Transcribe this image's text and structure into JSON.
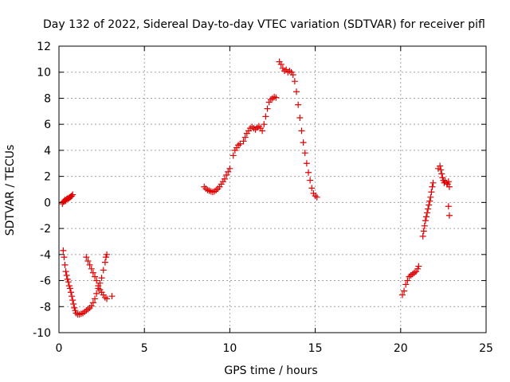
{
  "chart_data": {
    "type": "scatter",
    "title": "Day 132 of 2022, Sidereal Day-to-day VTEC variation (SDTVAR) for receiver pifl",
    "xlabel": "GPS time / hours",
    "ylabel": "SDTVAR / TECUs",
    "xlim": [
      0,
      25
    ],
    "ylim": [
      -10,
      12
    ],
    "xticks": [
      0,
      5,
      10,
      15,
      20,
      25
    ],
    "yticks": [
      -10,
      -8,
      -6,
      -4,
      -2,
      0,
      2,
      4,
      6,
      8,
      10,
      12
    ],
    "grid": true,
    "marker_color": "#e00000",
    "marker": "plus",
    "series": [
      {
        "points": [
          [
            0.2,
            -0.1
          ],
          [
            0.25,
            0.05
          ],
          [
            0.3,
            0.1
          ],
          [
            0.35,
            0.2
          ],
          [
            0.4,
            0.15
          ],
          [
            0.45,
            0.25
          ],
          [
            0.5,
            0.3
          ],
          [
            0.55,
            0.3
          ],
          [
            0.6,
            0.35
          ],
          [
            0.65,
            0.4
          ],
          [
            0.7,
            0.45
          ],
          [
            0.75,
            0.5
          ],
          [
            0.8,
            0.6
          ],
          [
            0.25,
            -3.7
          ],
          [
            0.3,
            -4.2
          ],
          [
            0.35,
            -4.8
          ],
          [
            0.4,
            -5.3
          ],
          [
            0.45,
            -5.6
          ],
          [
            0.5,
            -5.9
          ],
          [
            0.55,
            -6.1
          ],
          [
            0.6,
            -6.4
          ],
          [
            0.65,
            -6.6
          ],
          [
            0.7,
            -6.9
          ],
          [
            0.75,
            -7.2
          ],
          [
            0.8,
            -7.5
          ],
          [
            0.85,
            -7.8
          ],
          [
            0.9,
            -8.1
          ],
          [
            0.95,
            -8.3
          ],
          [
            1.0,
            -8.5
          ],
          [
            1.1,
            -8.6
          ],
          [
            1.2,
            -8.6
          ],
          [
            1.3,
            -8.55
          ],
          [
            1.4,
            -8.5
          ],
          [
            1.5,
            -8.4
          ],
          [
            1.6,
            -8.3
          ],
          [
            1.7,
            -8.2
          ],
          [
            1.8,
            -8.1
          ],
          [
            1.9,
            -7.95
          ],
          [
            2.0,
            -7.7
          ],
          [
            2.1,
            -7.4
          ],
          [
            2.2,
            -7.0
          ],
          [
            2.3,
            -6.6
          ],
          [
            2.4,
            -6.2
          ],
          [
            2.5,
            -5.8
          ],
          [
            2.6,
            -5.2
          ],
          [
            2.7,
            -4.6
          ],
          [
            2.75,
            -4.2
          ],
          [
            2.8,
            -4.0
          ],
          [
            1.6,
            -4.2
          ],
          [
            1.7,
            -4.5
          ],
          [
            1.8,
            -4.8
          ],
          [
            1.9,
            -5.1
          ],
          [
            2.0,
            -5.4
          ],
          [
            2.1,
            -5.7
          ],
          [
            2.2,
            -6.0
          ],
          [
            2.3,
            -6.4
          ],
          [
            2.4,
            -6.7
          ],
          [
            2.5,
            -6.9
          ],
          [
            2.6,
            -7.1
          ],
          [
            2.7,
            -7.3
          ],
          [
            2.8,
            -7.4
          ],
          [
            3.1,
            -7.2
          ],
          [
            8.5,
            1.2
          ],
          [
            8.6,
            1.05
          ],
          [
            8.7,
            0.95
          ],
          [
            8.8,
            0.9
          ],
          [
            8.9,
            0.85
          ],
          [
            9.0,
            0.8
          ],
          [
            9.1,
            0.85
          ],
          [
            9.2,
            0.95
          ],
          [
            9.3,
            1.05
          ],
          [
            9.4,
            1.2
          ],
          [
            9.5,
            1.4
          ],
          [
            9.6,
            1.6
          ],
          [
            9.7,
            1.8
          ],
          [
            9.8,
            2.1
          ],
          [
            9.9,
            2.35
          ],
          [
            10.0,
            2.6
          ],
          [
            10.2,
            3.6
          ],
          [
            10.3,
            4.0
          ],
          [
            10.4,
            4.2
          ],
          [
            10.5,
            4.4
          ],
          [
            10.6,
            4.5
          ],
          [
            10.8,
            4.7
          ],
          [
            10.9,
            5.0
          ],
          [
            11.0,
            5.3
          ],
          [
            11.1,
            5.5
          ],
          [
            11.2,
            5.7
          ],
          [
            11.3,
            5.8
          ],
          [
            11.4,
            5.7
          ],
          [
            11.5,
            5.6
          ],
          [
            11.6,
            5.75
          ],
          [
            11.7,
            5.85
          ],
          [
            11.8,
            5.7
          ],
          [
            11.9,
            5.5
          ],
          [
            12.0,
            6.0
          ],
          [
            12.1,
            6.6
          ],
          [
            12.2,
            7.2
          ],
          [
            12.3,
            7.7
          ],
          [
            12.4,
            7.9
          ],
          [
            12.5,
            8.0
          ],
          [
            12.6,
            8.1
          ],
          [
            12.7,
            8.05
          ],
          [
            12.9,
            10.8
          ],
          [
            13.0,
            10.6
          ],
          [
            13.1,
            10.3
          ],
          [
            13.2,
            10.1
          ],
          [
            13.3,
            10.2
          ],
          [
            13.4,
            10.0
          ],
          [
            13.5,
            10.1
          ],
          [
            13.6,
            10.0
          ],
          [
            13.7,
            9.8
          ],
          [
            13.8,
            9.3
          ],
          [
            13.9,
            8.5
          ],
          [
            14.0,
            7.5
          ],
          [
            14.1,
            6.5
          ],
          [
            14.2,
            5.5
          ],
          [
            14.3,
            4.6
          ],
          [
            14.4,
            3.8
          ],
          [
            14.5,
            3.0
          ],
          [
            14.6,
            2.3
          ],
          [
            14.7,
            1.7
          ],
          [
            14.8,
            1.1
          ],
          [
            14.9,
            0.7
          ],
          [
            15.0,
            0.5
          ],
          [
            15.1,
            0.4
          ],
          [
            20.1,
            -7.1
          ],
          [
            20.2,
            -6.8
          ],
          [
            20.3,
            -6.3
          ],
          [
            20.4,
            -6.0
          ],
          [
            20.5,
            -5.7
          ],
          [
            20.6,
            -5.6
          ],
          [
            20.7,
            -5.5
          ],
          [
            20.8,
            -5.4
          ],
          [
            20.9,
            -5.3
          ],
          [
            21.0,
            -5.1
          ],
          [
            21.05,
            -4.9
          ],
          [
            21.3,
            -2.6
          ],
          [
            21.35,
            -2.2
          ],
          [
            21.4,
            -1.8
          ],
          [
            21.45,
            -1.4
          ],
          [
            21.5,
            -1.1
          ],
          [
            21.55,
            -0.8
          ],
          [
            21.6,
            -0.5
          ],
          [
            21.65,
            -0.2
          ],
          [
            21.7,
            0.1
          ],
          [
            21.75,
            0.4
          ],
          [
            21.8,
            0.8
          ],
          [
            21.85,
            1.2
          ],
          [
            21.9,
            1.5
          ],
          [
            22.2,
            2.6
          ],
          [
            22.3,
            2.8
          ],
          [
            22.35,
            2.5
          ],
          [
            22.4,
            2.2
          ],
          [
            22.45,
            1.9
          ],
          [
            22.5,
            1.7
          ],
          [
            22.55,
            1.5
          ],
          [
            22.6,
            1.6
          ],
          [
            22.7,
            1.5
          ],
          [
            22.75,
            1.4
          ],
          [
            22.8,
            1.6
          ],
          [
            22.85,
            1.2
          ],
          [
            22.8,
            -0.3
          ],
          [
            22.85,
            -1.0
          ]
        ]
      }
    ]
  }
}
